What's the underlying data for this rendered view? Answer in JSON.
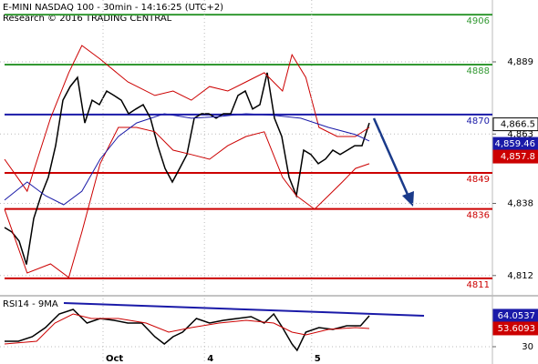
{
  "chart_data": [
    {
      "type": "line",
      "title": "E-MINI NASDAQ 100 - 30min - 14:16:25 (UTC+2)",
      "subtitle": "Research © 2016 TRADING CENTRAL",
      "xlim": [
        -0.625,
        66.875
      ],
      "ylim": [
        4805.7,
        4911.3
      ],
      "yticks": [
        {
          "value": 4889,
          "label": "4,889"
        },
        {
          "value": 4863,
          "label": "4,863"
        },
        {
          "value": 4838,
          "label": "4,838"
        },
        {
          "value": 4812,
          "label": "4,812"
        }
      ],
      "grid": true,
      "series": [
        {
          "color": "#000000",
          "x": [
            0,
            1,
            2,
            3,
            4,
            5,
            6,
            7,
            8,
            9,
            10,
            11,
            12,
            13,
            14,
            15,
            16,
            17,
            18,
            19,
            20,
            21,
            22,
            23,
            24,
            25,
            26,
            27,
            28,
            29,
            30,
            31,
            32,
            33,
            34,
            35,
            36,
            37,
            38,
            39,
            40,
            41,
            42,
            43,
            44,
            45,
            46,
            47,
            48,
            49,
            50
          ],
          "values": [
            4829.3,
            4827.7,
            4824.4,
            4816,
            4832.6,
            4840.8,
            4847.4,
            4858.8,
            4875.2,
            4880.1,
            4883.4,
            4867,
            4875.2,
            4873.6,
            4878.5,
            4876.9,
            4875.2,
            4870.3,
            4872,
            4873.6,
            4868.7,
            4858.8,
            4850.6,
            4845.7,
            4850.6,
            4855.6,
            4868.7,
            4870.3,
            4870.3,
            4868.7,
            4870.3,
            4870.3,
            4876.9,
            4878.5,
            4872,
            4873.6,
            4885.1,
            4868.7,
            4862.1,
            4847.4,
            4840.8,
            4857.2,
            4855.6,
            4852.3,
            4854,
            4857.2,
            4855.6,
            4857.2,
            4858.8,
            4858.8,
            4867
          ]
        },
        {
          "color": "#cc0000",
          "x": [
            0,
            3.1,
            6.3,
            8.8,
            10.6,
            13.1,
            16.9,
            20.6,
            23.1,
            25.6,
            28.1,
            30.6,
            33.1,
            35.6,
            38.1,
            39.4,
            41.3,
            43.1,
            45.6,
            48.1,
            50
          ],
          "values": [
            4853.9,
            4842.4,
            4868.7,
            4885.1,
            4894.9,
            4890,
            4881.8,
            4876.9,
            4878.5,
            4875.2,
            4880.1,
            4878.5,
            4881.8,
            4885.1,
            4878.5,
            4891.6,
            4883.4,
            4865.4,
            4862.1,
            4862.1,
            4865.4
          ]
        },
        {
          "color": "#cc0000",
          "x": [
            0,
            3.1,
            6.3,
            8.8,
            10.6,
            13.1,
            15.6,
            18.1,
            20.6,
            23.1,
            25.6,
            28.1,
            30.6,
            33.1,
            35.6,
            38.1,
            40,
            42.5,
            44.4,
            46.3,
            48.1,
            50
          ],
          "values": [
            4835.9,
            4812.9,
            4816.2,
            4811.3,
            4827.7,
            4852.3,
            4865.4,
            4865.4,
            4863.8,
            4857.2,
            4855.6,
            4853.9,
            4858.8,
            4862.1,
            4863.8,
            4847.4,
            4840.8,
            4835.9,
            4840.8,
            4845.7,
            4850.6,
            4852.3
          ]
        },
        {
          "color": "#1a1aa8",
          "x": [
            0,
            3.1,
            5.6,
            8.1,
            10.6,
            13.1,
            15.6,
            18.1,
            21.9,
            25.6,
            29.4,
            33.1,
            36.9,
            40.6,
            44.4,
            48.1,
            50
          ],
          "values": [
            4839.2,
            4845.7,
            4840.8,
            4837.5,
            4842.4,
            4853.9,
            4862.1,
            4867,
            4870.3,
            4868.7,
            4869.3,
            4870.3,
            4869.7,
            4868.7,
            4865.4,
            4862.8,
            4860.5
          ]
        }
      ],
      "levels": [
        {
          "value": 4906,
          "color": "#339933"
        },
        {
          "value": 4888,
          "color": "#339933"
        },
        {
          "value": 4870,
          "color": "#1a1aa8"
        },
        {
          "value": 4849,
          "color": "#cc0000"
        },
        {
          "value": 4836,
          "color": "#cc0000"
        },
        {
          "value": 4811,
          "color": "#cc0000"
        }
      ],
      "price_tags": [
        {
          "value": 4866.5,
          "label": "4,866.5",
          "color": "#000000"
        },
        {
          "value": 4859.46,
          "label": "4,859.46",
          "color": "#1a1aa8"
        },
        {
          "value": 4857.8,
          "label": "4,857.8",
          "color": "#cc0000"
        }
      ]
    },
    {
      "type": "line",
      "title": "RSI14 - 9MA",
      "xlim": [
        -0.625,
        66.875
      ],
      "xticks": [
        {
          "value": 13.5,
          "label": "Oct"
        },
        {
          "value": 27.4,
          "label": "4"
        },
        {
          "value": 42.1,
          "label": "5"
        }
      ],
      "ylim": [
        11,
        85
      ],
      "yticks": [
        30
      ],
      "grid": true,
      "series": [
        {
          "color": "#000000",
          "x": [
            0,
            1.9,
            3.8,
            5.6,
            7.5,
            9.4,
            11.3,
            13.1,
            15,
            16.9,
            18.8,
            20.6,
            21.9,
            23.1,
            24.4,
            26.3,
            28.1,
            30,
            31.9,
            33.8,
            35.6,
            36.9,
            38.1,
            39.4,
            40.1,
            41.3,
            43.1,
            45,
            46.9,
            48.8,
            50
          ],
          "values": [
            36,
            36,
            41,
            51,
            66,
            71,
            56,
            61,
            59,
            56,
            56,
            41,
            33,
            41,
            46,
            61,
            56,
            59,
            61,
            63,
            56,
            66,
            51,
            33,
            26,
            46,
            51,
            49,
            53,
            53,
            64
          ]
        },
        {
          "color": "#cc0000",
          "x": [
            0,
            4.4,
            6.9,
            9.4,
            11.9,
            15.6,
            19.4,
            22.5,
            25.6,
            29.4,
            33.1,
            36.9,
            39.4,
            41.3,
            44.4,
            48.1,
            50
          ],
          "values": [
            33,
            36,
            56,
            66,
            61,
            61,
            56,
            46,
            51,
            56,
            59,
            56,
            46,
            43,
            49,
            51,
            50
          ]
        }
      ],
      "price_tags": [
        {
          "value": 64.0537,
          "color": "#1a1aa8"
        },
        {
          "value": 53.6093,
          "color": "#cc0000"
        }
      ]
    }
  ]
}
